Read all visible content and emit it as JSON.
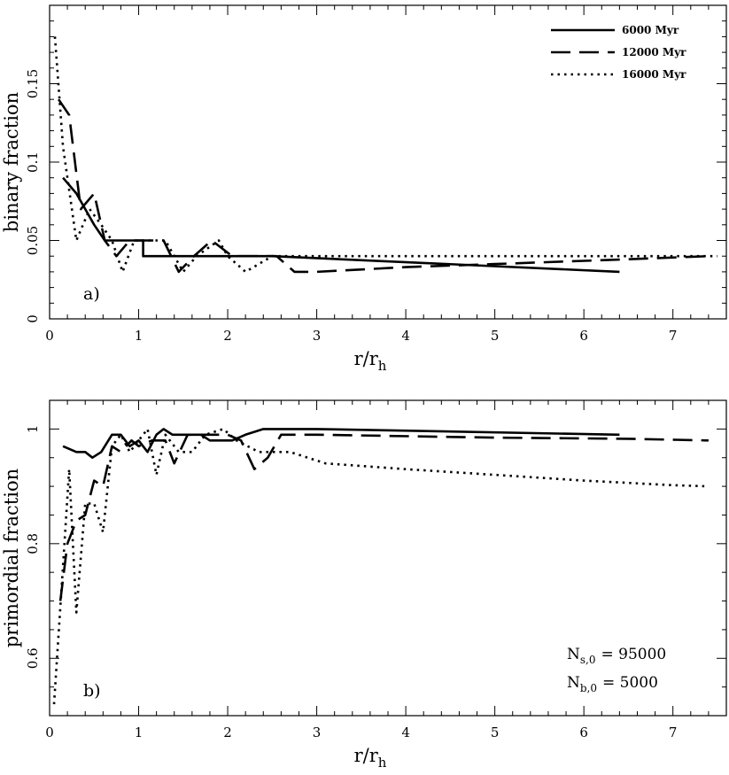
{
  "chart_data": [
    {
      "type": "line",
      "panel_label": "a)",
      "xlabel": "r/r",
      "xlabel_sub": "h",
      "ylabel": "binary fraction",
      "xlim": [
        0,
        7.6
      ],
      "ylim": [
        0,
        0.2
      ],
      "x_ticks": [
        0,
        1,
        2,
        3,
        4,
        5,
        6,
        7
      ],
      "y_ticks": [
        0,
        0.05,
        0.1,
        0.15
      ],
      "y_tick_labels": [
        "0",
        "0.05",
        "0.1",
        "0.15"
      ],
      "legend_position": "top-right",
      "series": [
        {
          "name": "6000 Myr",
          "style": "solid",
          "points": [
            [
              0.15,
              0.09
            ],
            [
              0.3,
              0.08
            ],
            [
              0.5,
              0.06
            ],
            [
              0.62,
              0.05
            ],
            [
              1.05,
              0.05
            ],
            [
              1.05,
              0.04
            ],
            [
              2.5,
              0.04
            ],
            [
              6.4,
              0.03
            ]
          ]
        },
        {
          "name": "12000 Myr",
          "style": "dashed",
          "points": [
            [
              0.1,
              0.14
            ],
            [
              0.22,
              0.13
            ],
            [
              0.35,
              0.07
            ],
            [
              0.5,
              0.08
            ],
            [
              0.62,
              0.05
            ],
            [
              0.75,
              0.04
            ],
            [
              0.9,
              0.05
            ],
            [
              1.28,
              0.05
            ],
            [
              1.45,
              0.03
            ],
            [
              1.62,
              0.04
            ],
            [
              1.82,
              0.05
            ],
            [
              2.05,
              0.04
            ],
            [
              2.55,
              0.04
            ],
            [
              2.75,
              0.03
            ],
            [
              3.0,
              0.03
            ],
            [
              4.0,
              0.033
            ],
            [
              5.0,
              0.035
            ],
            [
              6.0,
              0.037
            ],
            [
              6.5,
              0.038
            ],
            [
              7.4,
              0.04
            ]
          ]
        },
        {
          "name": "16000 Myr",
          "style": "dotted",
          "points": [
            [
              0.06,
              0.18
            ],
            [
              0.15,
              0.11
            ],
            [
              0.3,
              0.05
            ],
            [
              0.45,
              0.07
            ],
            [
              0.58,
              0.06
            ],
            [
              0.7,
              0.05
            ],
            [
              0.82,
              0.03
            ],
            [
              0.95,
              0.05
            ],
            [
              1.3,
              0.05
            ],
            [
              1.5,
              0.03
            ],
            [
              1.65,
              0.04
            ],
            [
              1.9,
              0.05
            ],
            [
              2.0,
              0.04
            ],
            [
              2.2,
              0.03
            ],
            [
              2.5,
              0.04
            ],
            [
              3.0,
              0.04
            ],
            [
              7.5,
              0.04
            ]
          ]
        }
      ]
    },
    {
      "type": "line",
      "panel_label": "b)",
      "xlabel": "r/r",
      "xlabel_sub": "h",
      "ylabel": "primordial fraction",
      "xlim": [
        0,
        7.6
      ],
      "ylim": [
        0.5,
        1.05
      ],
      "x_ticks": [
        0,
        1,
        2,
        3,
        4,
        5,
        6,
        7
      ],
      "y_ticks": [
        0.6,
        0.8,
        1.0
      ],
      "y_tick_labels": [
        "0.6",
        "0.8",
        "1"
      ],
      "annotations": [
        {
          "main": "N",
          "sub": "s,0",
          "value": "=  95000"
        },
        {
          "main": "N",
          "sub": "b,0",
          "value": "=   5000"
        }
      ],
      "series": [
        {
          "name": "6000 Myr",
          "style": "solid",
          "points": [
            [
              0.15,
              0.97
            ],
            [
              0.3,
              0.96
            ],
            [
              0.4,
              0.96
            ],
            [
              0.48,
              0.95
            ],
            [
              0.58,
              0.96
            ],
            [
              0.7,
              0.99
            ],
            [
              0.8,
              0.99
            ],
            [
              0.9,
              0.97
            ],
            [
              1.0,
              0.98
            ],
            [
              1.1,
              0.96
            ],
            [
              1.2,
              0.99
            ],
            [
              1.28,
              1.0
            ],
            [
              1.38,
              0.99
            ],
            [
              1.7,
              0.99
            ],
            [
              1.8,
              0.98
            ],
            [
              2.05,
              0.98
            ],
            [
              2.2,
              0.99
            ],
            [
              2.4,
              1.0
            ],
            [
              3.0,
              1.0
            ],
            [
              6.4,
              0.99
            ]
          ]
        },
        {
          "name": "12000 Myr",
          "style": "dashed",
          "points": [
            [
              0.12,
              0.7
            ],
            [
              0.2,
              0.8
            ],
            [
              0.3,
              0.84
            ],
            [
              0.4,
              0.85
            ],
            [
              0.5,
              0.91
            ],
            [
              0.6,
              0.9
            ],
            [
              0.7,
              0.97
            ],
            [
              0.8,
              0.96
            ],
            [
              0.92,
              0.98
            ],
            [
              1.0,
              0.97
            ],
            [
              1.15,
              0.98
            ],
            [
              1.3,
              0.98
            ],
            [
              1.4,
              0.94
            ],
            [
              1.55,
              0.99
            ],
            [
              1.8,
              0.99
            ],
            [
              2.0,
              0.99
            ],
            [
              2.15,
              0.98
            ],
            [
              2.3,
              0.93
            ],
            [
              2.45,
              0.95
            ],
            [
              2.6,
              0.99
            ],
            [
              3.0,
              0.99
            ],
            [
              5.0,
              0.985
            ],
            [
              6.5,
              0.983
            ],
            [
              7.4,
              0.98
            ]
          ]
        },
        {
          "name": "16000 Myr",
          "style": "dotted",
          "points": [
            [
              0.05,
              0.52
            ],
            [
              0.15,
              0.76
            ],
            [
              0.22,
              0.93
            ],
            [
              0.3,
              0.68
            ],
            [
              0.4,
              0.87
            ],
            [
              0.5,
              0.87
            ],
            [
              0.6,
              0.82
            ],
            [
              0.7,
              0.97
            ],
            [
              0.8,
              0.99
            ],
            [
              0.9,
              0.96
            ],
            [
              1.0,
              0.98
            ],
            [
              1.1,
              1.0
            ],
            [
              1.2,
              0.92
            ],
            [
              1.3,
              0.99
            ],
            [
              1.45,
              0.96
            ],
            [
              1.6,
              0.96
            ],
            [
              1.75,
              0.99
            ],
            [
              1.95,
              1.0
            ],
            [
              2.1,
              0.98
            ],
            [
              2.35,
              0.96
            ],
            [
              2.5,
              0.96
            ],
            [
              2.7,
              0.96
            ],
            [
              3.1,
              0.94
            ],
            [
              4.0,
              0.93
            ],
            [
              5.0,
              0.92
            ],
            [
              6.0,
              0.91
            ],
            [
              7.0,
              0.902
            ],
            [
              7.4,
              0.9
            ]
          ]
        }
      ]
    }
  ]
}
